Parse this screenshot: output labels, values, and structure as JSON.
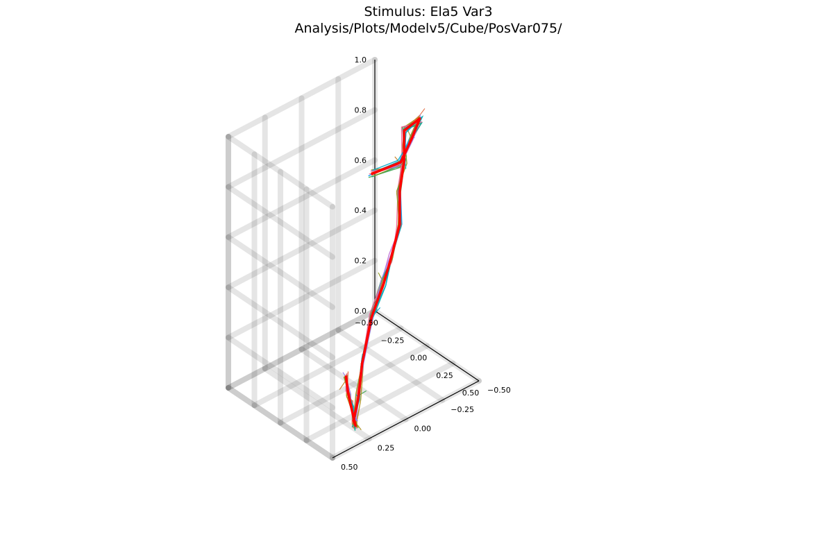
{
  "chart_data": {
    "type": "line",
    "projection": "3d",
    "title": "Stimulus: Ela5 Var3",
    "subtitle": "Analysis/Plots/Modelv5/Cube/PosVar075/",
    "legend": "none",
    "grid": true,
    "xlim": [
      -0.5,
      0.5
    ],
    "ylim": [
      -0.5,
      0.5
    ],
    "zlim": [
      0.0,
      1.0
    ],
    "x_ticks": [
      "−0.50",
      "−0.25",
      "0.00",
      "0.25",
      "0.50"
    ],
    "y_ticks": [
      "−0.50",
      "−0.25",
      "0.00",
      "0.25",
      "0.50"
    ],
    "z_ticks": [
      "0.0",
      "0.2",
      "0.4",
      "0.6",
      "0.8",
      "1.0"
    ],
    "reference_series": {
      "color": "#ff0000",
      "points": [
        [
          0.14,
          -0.02,
          0.87
        ],
        [
          0.17,
          -0.2,
          0.87
        ],
        [
          0.14,
          -0.3,
          0.93
        ],
        [
          0.1,
          -0.38,
          0.97
        ],
        [
          -0.05,
          -0.38,
          0.88
        ],
        [
          -0.05,
          -0.38,
          0.76
        ],
        [
          -0.05,
          -0.35,
          0.65
        ],
        [
          0.02,
          -0.3,
          0.55
        ],
        [
          0.05,
          -0.22,
          0.45
        ],
        [
          0.12,
          -0.12,
          0.4
        ],
        [
          0.2,
          0.02,
          0.33
        ],
        [
          0.25,
          0.12,
          0.19
        ],
        [
          0.27,
          0.16,
          0.07
        ],
        [
          0.35,
          0.25,
          0.03
        ],
        [
          0.44,
          0.3,
          0.05
        ],
        [
          0.48,
          0.34,
          0.1
        ],
        [
          0.48,
          0.36,
          0.16
        ],
        [
          0.48,
          0.38,
          0.22
        ],
        [
          0.46,
          0.38,
          0.28
        ]
      ]
    },
    "trial_colors": [
      "#009af9",
      "#e26f46",
      "#3da44d",
      "#c271d2",
      "#ac8e18",
      "#00a9ad",
      "#ed5d92",
      "#c68225",
      "#00a98d",
      "#8e971d",
      "#00a8cb",
      "#9b7fe9"
    ],
    "trial_count": 12,
    "trial_jitter": 0.025,
    "trial_spike_length": 0.07
  }
}
